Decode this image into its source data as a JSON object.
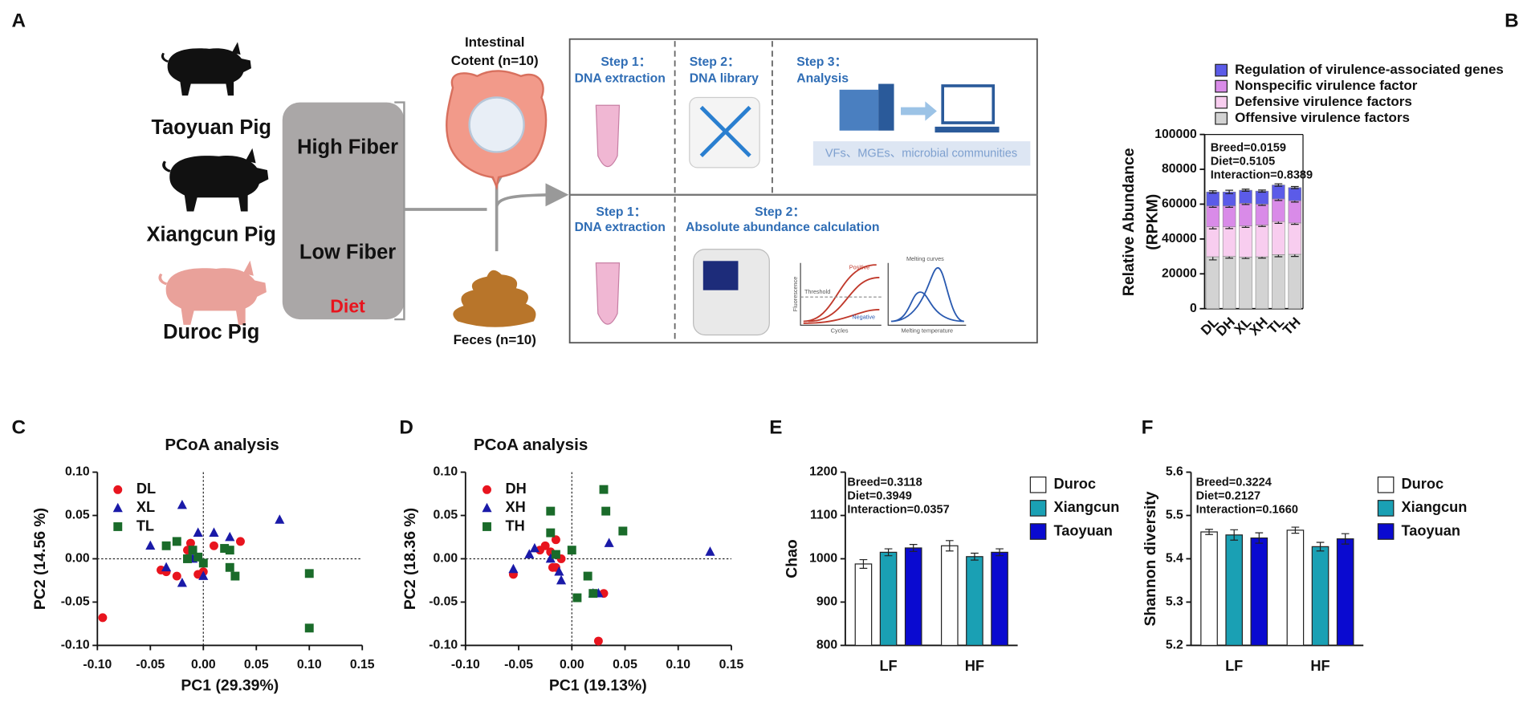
{
  "diagram": {
    "panel_label": "A",
    "pigs": [
      "Taoyuan Pig",
      "Xiangcun Pig",
      "Duroc Pig"
    ],
    "diet": {
      "high": "High Fiber",
      "low": "Low Fiber",
      "label": "Diet"
    },
    "samples": {
      "intestinal": [
        "Intestinal",
        "Cotent (n=10)"
      ],
      "feces": "Feces (n=10)"
    },
    "top_steps": [
      {
        "step": "Step 1：",
        "name": "DNA extraction"
      },
      {
        "step": "Step 2：",
        "name": "DNA library"
      },
      {
        "step": "Step 3：",
        "name": "Analysis"
      }
    ],
    "top_note": "VFs、MGEs、microbial communities",
    "bottom_steps": [
      {
        "step": "Step 1：",
        "name": "DNA extraction"
      },
      {
        "step": "Step 2：",
        "name": "Absolute abundance calculation"
      }
    ],
    "qpcr_labels": [
      "Positive",
      "Threshold",
      "Negative",
      "Fluorescence",
      "Cycles",
      "Melting curves",
      "Melting temperature"
    ]
  },
  "chart_data": [
    {
      "type": "stacked_bar",
      "panel_label": "B",
      "ylabel": [
        "Relative Abundance",
        "(RPKM)"
      ],
      "annotations": [
        "Breed=0.0159",
        "Diet=0.5105",
        "Interaction=0.8389"
      ],
      "categories": [
        "DL",
        "DH",
        "XL",
        "XH",
        "TL",
        "TH"
      ],
      "series": [
        {
          "name": "Offensive virulence factors",
          "color": "#d3d3d3",
          "values": [
            29800,
            30000,
            29600,
            29800,
            31000,
            31200
          ],
          "errors": [
            1800,
            1000,
            800,
            800,
            1200,
            1200
          ]
        },
        {
          "name": "Defensive virulence factors",
          "color": "#f8cdef",
          "values": [
            17200,
            17000,
            17900,
            18200,
            19000,
            18000
          ],
          "errors": [
            1200,
            1000,
            800,
            800,
            1000,
            800
          ]
        },
        {
          "name": "Nonspecific virulence factor",
          "color": "#d98be8",
          "values": [
            12000,
            12000,
            13000,
            12000,
            13000,
            12800
          ],
          "errors": [
            800,
            800,
            700,
            700,
            900,
            800
          ]
        },
        {
          "name": "Regulation of virulence-associated genes",
          "color": "#5b5be8",
          "values": [
            8000,
            8000,
            7500,
            7500,
            8000,
            7500
          ],
          "errors": [
            700,
            1000,
            600,
            600,
            700,
            600
          ]
        }
      ],
      "ylim": [
        0,
        100000
      ],
      "yticks": [
        0,
        20000,
        40000,
        60000,
        80000,
        100000
      ]
    },
    {
      "type": "scatter",
      "panel_label": "C",
      "title": "PCoA analysis",
      "xlabel": "PC1 (29.39%)",
      "ylabel": "PC2 (14.56 %)",
      "zero_lines": true,
      "series": [
        {
          "name": "DL",
          "color": "#e8141e",
          "marker": "circle",
          "x": [
            -0.095,
            -0.04,
            -0.035,
            -0.025,
            -0.015,
            -0.012,
            -0.005,
            0.0,
            0.01,
            0.035
          ],
          "values": [
            -0.068,
            -0.013,
            -0.015,
            -0.02,
            0.01,
            0.018,
            -0.018,
            -0.015,
            0.015,
            0.02
          ]
        },
        {
          "name": "XL",
          "color": "#1a1aa8",
          "marker": "triangle",
          "x": [
            -0.05,
            -0.02,
            -0.005,
            0.01,
            0.025,
            0.072,
            -0.02,
            -0.035,
            0.0,
            -0.01
          ],
          "values": [
            0.015,
            0.062,
            0.03,
            0.03,
            0.025,
            0.045,
            -0.028,
            -0.01,
            -0.02,
            0.0
          ]
        },
        {
          "name": "TL",
          "color": "#1a6b2a",
          "marker": "square",
          "x": [
            -0.035,
            -0.025,
            -0.01,
            -0.005,
            0.0,
            0.02,
            0.025,
            0.025,
            0.03,
            0.1,
            0.1,
            -0.015
          ],
          "values": [
            0.015,
            0.02,
            0.01,
            0.002,
            -0.005,
            0.012,
            0.01,
            -0.01,
            -0.02,
            -0.017,
            -0.08,
            0.0
          ]
        }
      ],
      "xlim": [
        -0.1,
        0.15
      ],
      "xticks": [
        {
          "value": -0.1,
          "label": "-0.10"
        },
        -0.05,
        {
          "value": 0,
          "label": "0.00"
        },
        0.05,
        {
          "value": 0.1,
          "label": "0.10"
        },
        0.15
      ],
      "ylim": [
        -0.1,
        0.1
      ],
      "yticks": [
        {
          "value": -0.1,
          "label": "-0.10"
        },
        -0.05,
        {
          "value": 0,
          "label": "0.00"
        },
        0.05,
        {
          "value": 0.1,
          "label": "0.10"
        }
      ]
    },
    {
      "type": "scatter",
      "panel_label": "D",
      "title": "PCoA analysis",
      "xlabel": "PC1 (19.13%)",
      "ylabel": "PC2 (18.36 %)",
      "zero_lines": true,
      "series": [
        {
          "name": "DH",
          "color": "#e8141e",
          "marker": "circle",
          "x": [
            -0.055,
            -0.03,
            -0.025,
            -0.02,
            -0.015,
            -0.01,
            -0.015,
            -0.018,
            0.03,
            0.025
          ],
          "values": [
            -0.018,
            0.01,
            0.015,
            0.008,
            0.022,
            0.0,
            -0.01,
            -0.01,
            -0.04,
            -0.095
          ]
        },
        {
          "name": "XH",
          "color": "#1a1aa8",
          "marker": "triangle",
          "x": [
            -0.055,
            -0.04,
            -0.035,
            -0.012,
            -0.01,
            0.02,
            0.025,
            0.035,
            0.13,
            -0.02
          ],
          "values": [
            -0.012,
            0.005,
            0.012,
            -0.015,
            -0.025,
            -0.04,
            -0.04,
            0.018,
            0.008,
            0.0
          ]
        },
        {
          "name": "TH",
          "color": "#1a6b2a",
          "marker": "square",
          "x": [
            -0.02,
            -0.02,
            -0.015,
            0.0,
            0.03,
            0.032,
            0.048,
            0.005,
            0.015,
            0.02
          ],
          "values": [
            0.055,
            0.03,
            0.005,
            0.01,
            0.08,
            0.055,
            0.032,
            -0.045,
            -0.02,
            -0.04
          ]
        }
      ],
      "xlim": [
        -0.1,
        0.15
      ],
      "xticks": [
        {
          "value": -0.1,
          "label": "-0.10"
        },
        -0.05,
        {
          "value": 0,
          "label": "0.00"
        },
        0.05,
        {
          "value": 0.1,
          "label": "0.10"
        },
        0.15
      ],
      "ylim": [
        -0.1,
        0.1
      ],
      "yticks": [
        {
          "value": -0.1,
          "label": "-0.10"
        },
        -0.05,
        {
          "value": 0,
          "label": "0.00"
        },
        0.05,
        {
          "value": 0.1,
          "label": "0.10"
        }
      ]
    },
    {
      "type": "grouped_bar",
      "panel_label": "E",
      "ylabel": "Chao",
      "annotations": [
        "Breed=0.3118",
        "Diet=0.3949",
        "Interaction=0.0357"
      ],
      "categories": [
        "LF",
        "HF"
      ],
      "series": [
        {
          "name": "Duroc",
          "color": "#ffffff",
          "values": [
            988,
            1030
          ],
          "errors": [
            10,
            12
          ]
        },
        {
          "name": "Xiangcun",
          "color": "#1aa0b4",
          "values": [
            1015,
            1005
          ],
          "errors": [
            8,
            8
          ]
        },
        {
          "name": "Taoyuan",
          "color": "#0a0ad0",
          "values": [
            1025,
            1015
          ],
          "errors": [
            8,
            8
          ]
        }
      ],
      "ylim": [
        800,
        1200
      ],
      "yticks": [
        800,
        900,
        1000,
        1100,
        1200
      ]
    },
    {
      "type": "grouped_bar",
      "panel_label": "F",
      "ylabel": "Shannon diversity",
      "annotations": [
        "Breed=0.3224",
        "Diet=0.2127",
        "Interaction=0.1660"
      ],
      "categories": [
        "LF",
        "HF"
      ],
      "series": [
        {
          "name": "Duroc",
          "color": "#ffffff",
          "values": [
            5.462,
            5.466
          ],
          "errors": [
            0.006,
            0.007
          ]
        },
        {
          "name": "Xiangcun",
          "color": "#1aa0b4",
          "values": [
            5.455,
            5.428
          ],
          "errors": [
            0.012,
            0.01
          ]
        },
        {
          "name": "Taoyuan",
          "color": "#0a0ad0",
          "values": [
            5.448,
            5.446
          ],
          "errors": [
            0.012,
            0.012
          ]
        }
      ],
      "ylim": [
        5.2,
        5.6
      ],
      "yticks": [
        5.2,
        5.3,
        5.4,
        5.5,
        5.6
      ]
    }
  ]
}
